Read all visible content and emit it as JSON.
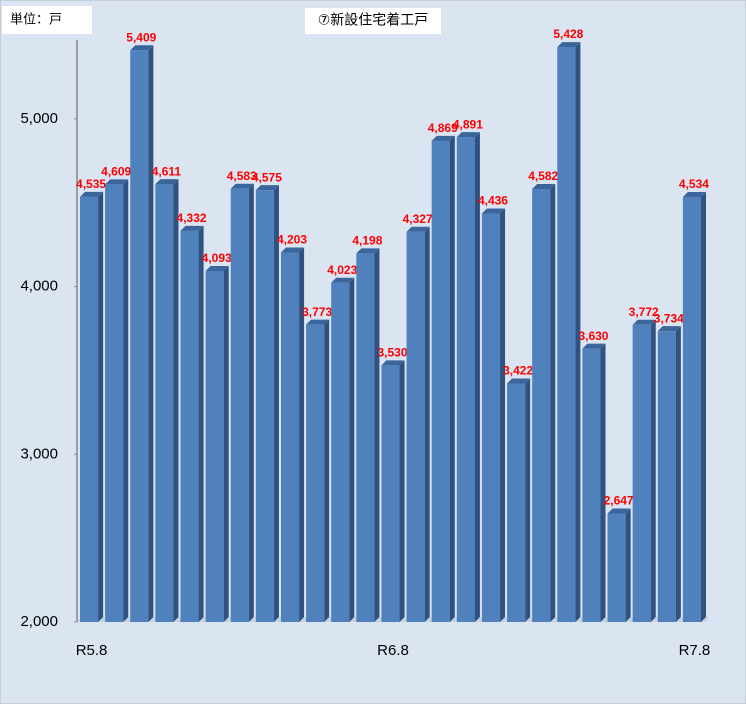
{
  "chart_data": {
    "type": "bar",
    "title": "⑦新設住宅着工戸",
    "unit_label": "単位：戸",
    "categories": [
      "R5.8",
      null,
      null,
      null,
      null,
      null,
      null,
      null,
      null,
      null,
      null,
      null,
      "R6.8",
      null,
      null,
      null,
      null,
      null,
      null,
      null,
      null,
      null,
      null,
      null,
      "R7.8"
    ],
    "values": [
      4535,
      4609,
      5409,
      4611,
      4332,
      4093,
      4583,
      4575,
      4203,
      3773,
      4023,
      4198,
      3530,
      4327,
      4869,
      4891,
      4436,
      3422,
      4582,
      5428,
      3630,
      2647,
      3772,
      3734,
      4534
    ],
    "value_labels": [
      "4,535",
      "4,609",
      "5,409",
      "4,611",
      "4,332",
      "4,093",
      "4,583",
      "4,575",
      "4,203",
      "3,773",
      "4,023",
      "4,198",
      "3,530",
      "4,327",
      "4,869",
      "4,891",
      "4,436",
      "3,422",
      "4,582",
      "5,428",
      "3,630",
      "2,647",
      "3,772",
      "3,734",
      "4,534"
    ],
    "color": "#4f81bd",
    "ylim": [
      2000,
      5500
    ],
    "yticks": [
      {
        "value": 2000,
        "label": "2,000"
      },
      {
        "value": 3000,
        "label": "3,000"
      },
      {
        "value": 4000,
        "label": "4,000"
      },
      {
        "value": 5000,
        "label": "5,000"
      }
    ],
    "grid": false
  }
}
